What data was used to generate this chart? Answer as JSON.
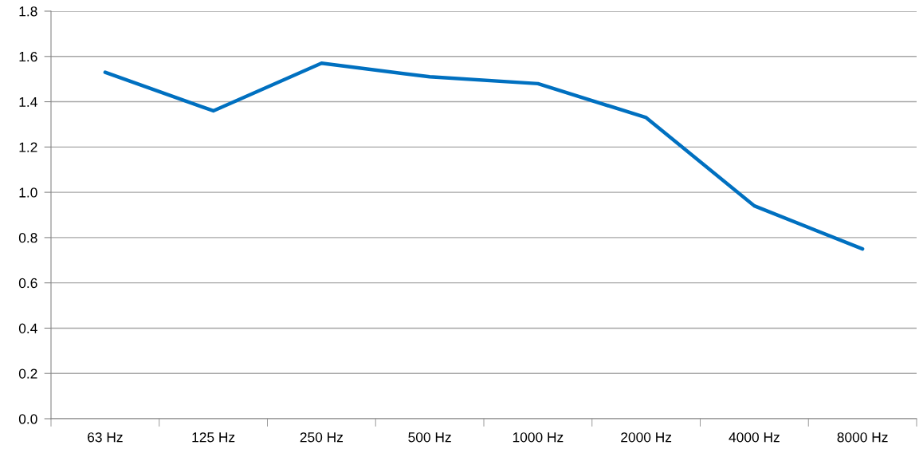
{
  "chart_data": {
    "type": "line",
    "categories": [
      "63 Hz",
      "125 Hz",
      "250 Hz",
      "500 Hz",
      "1000 Hz",
      "2000 Hz",
      "4000 Hz",
      "8000 Hz"
    ],
    "series": [
      {
        "color": "#0070c0",
        "values": [
          1.53,
          1.36,
          1.57,
          1.51,
          1.48,
          1.33,
          0.94,
          0.75
        ]
      }
    ],
    "ylim": [
      0,
      1.8
    ],
    "yticks": [
      {
        "value": 0,
        "label": "0.0"
      },
      {
        "value": 0.2,
        "label": "0.2"
      },
      {
        "value": 0.4,
        "label": "0.4"
      },
      {
        "value": 0.6,
        "label": "0.6"
      },
      {
        "value": 0.8,
        "label": "0.8"
      },
      {
        "value": 1.0,
        "label": "1.0"
      },
      {
        "value": 1.2,
        "label": "1.2"
      },
      {
        "value": 1.4,
        "label": "1.4"
      },
      {
        "value": 1.6,
        "label": "1.6"
      },
      {
        "value": 1.8,
        "label": "1.8"
      }
    ],
    "grid": "y",
    "marker": "none",
    "line_style": "solid"
  }
}
